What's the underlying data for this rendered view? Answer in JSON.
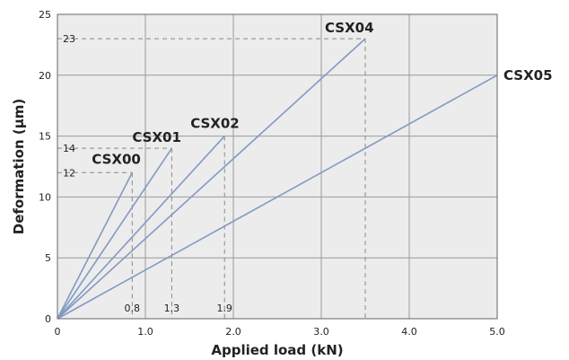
{
  "chart_data": {
    "type": "line",
    "xlabel": "Applied load (kN)",
    "ylabel": "Deformation (μm)",
    "xlim": [
      0,
      5
    ],
    "ylim": [
      0,
      25
    ],
    "x_ticks": [
      "0",
      "1.0",
      "2.0",
      "3.0",
      "4.0",
      "5.0"
    ],
    "y_ticks": [
      "0",
      "5",
      "10",
      "15",
      "20",
      "25"
    ],
    "grid": true,
    "colors": {
      "line": "#8299c4",
      "plot_bg": "#ececec",
      "grid": "#9a9a9a",
      "ref": "#888888"
    },
    "series": [
      {
        "name": "CSX00",
        "x": [
          0,
          0.85
        ],
        "y": [
          0,
          12
        ]
      },
      {
        "name": "CSX01",
        "x": [
          0,
          1.3
        ],
        "y": [
          0,
          14
        ]
      },
      {
        "name": "CSX02",
        "x": [
          0,
          1.9
        ],
        "y": [
          0,
          15
        ]
      },
      {
        "name": "CSX04",
        "x": [
          0,
          3.5
        ],
        "y": [
          0,
          23
        ]
      },
      {
        "name": "CSX05",
        "x": [
          0,
          5.0
        ],
        "y": [
          0,
          20
        ]
      }
    ],
    "reference_lines": [
      {
        "kind": "horizontal",
        "y": 23,
        "x_end": 3.5,
        "label": "23"
      },
      {
        "kind": "horizontal",
        "y": 14,
        "x_end": 1.3,
        "label": "14"
      },
      {
        "kind": "horizontal",
        "y": 12,
        "x_end": 0.85,
        "label": "12"
      },
      {
        "kind": "vertical",
        "x": 0.85,
        "y_end": 12,
        "label": "0.8"
      },
      {
        "kind": "vertical",
        "x": 1.3,
        "y_end": 14,
        "label": "1.3"
      },
      {
        "kind": "vertical",
        "x": 1.9,
        "y_end": 15,
        "label": "1.9"
      },
      {
        "kind": "vertical",
        "x": 3.5,
        "y_end": 23,
        "label": ""
      }
    ]
  }
}
